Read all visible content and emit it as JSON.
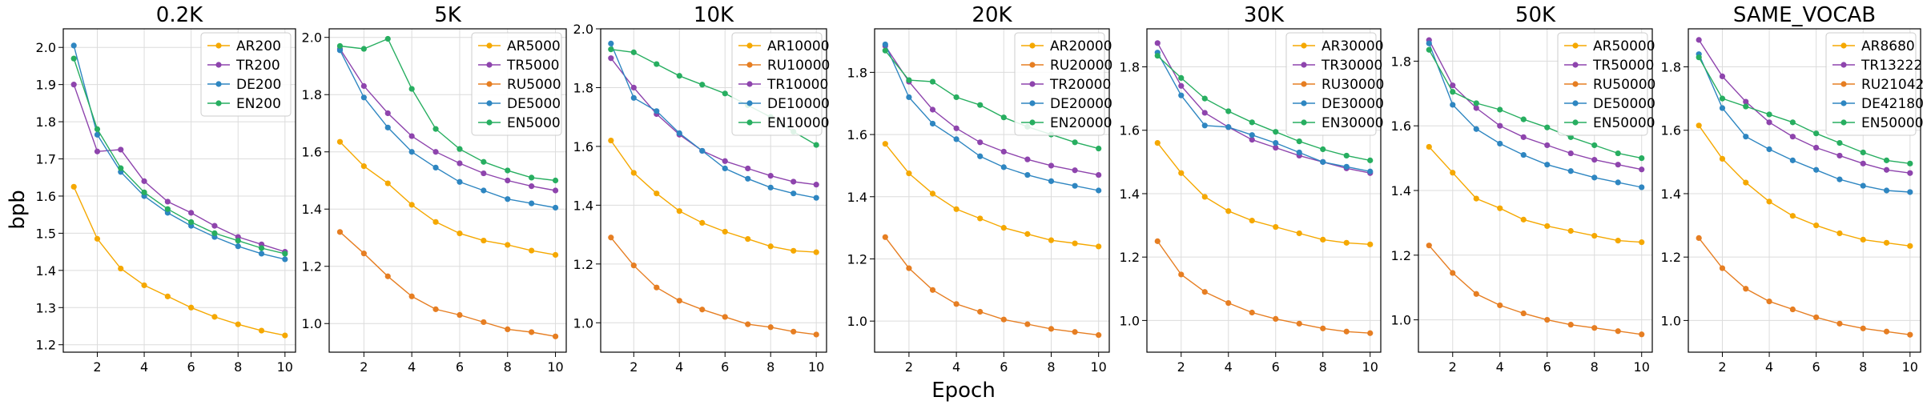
{
  "figure": {
    "xlabel": "Epoch",
    "ylabel": "bpb"
  },
  "colors": {
    "AR": "#f5a800",
    "TR": "#8e44ad",
    "RU": "#e67e22",
    "DE": "#2e86c1",
    "EN": "#27ae60"
  },
  "chart_data": [
    {
      "type": "line",
      "title": "0.2K",
      "x": [
        1,
        2,
        3,
        4,
        5,
        6,
        7,
        8,
        9,
        10
      ],
      "ylim": [
        1.18,
        2.05
      ],
      "yticks": [
        "1.2",
        "1.3",
        "1.4",
        "1.5",
        "1.6",
        "1.7",
        "1.8",
        "1.9",
        "2.0"
      ],
      "ytick_values": [
        1.2,
        1.3,
        1.4,
        1.5,
        1.6,
        1.7,
        1.8,
        1.9,
        2.0
      ],
      "xticks": [
        "2",
        "4",
        "6",
        "8",
        "10"
      ],
      "grid": true,
      "legend": "top-right",
      "series": [
        {
          "name": "AR200",
          "lang": "AR",
          "values": [
            1.625,
            1.485,
            1.405,
            1.36,
            1.33,
            1.3,
            1.275,
            1.255,
            1.238,
            1.225
          ]
        },
        {
          "name": "TR200",
          "lang": "TR",
          "values": [
            1.9,
            1.72,
            1.725,
            1.64,
            1.585,
            1.555,
            1.52,
            1.49,
            1.47,
            1.45
          ]
        },
        {
          "name": "DE200",
          "lang": "DE",
          "values": [
            2.005,
            1.765,
            1.665,
            1.6,
            1.555,
            1.52,
            1.49,
            1.465,
            1.445,
            1.43
          ]
        },
        {
          "name": "EN200",
          "lang": "EN",
          "values": [
            1.97,
            1.78,
            1.675,
            1.61,
            1.565,
            1.53,
            1.5,
            1.48,
            1.46,
            1.445
          ]
        }
      ]
    },
    {
      "type": "line",
      "title": "5K",
      "x": [
        1,
        2,
        3,
        4,
        5,
        6,
        7,
        8,
        9,
        10
      ],
      "ylim": [
        0.9,
        2.03
      ],
      "yticks": [
        "1.0",
        "1.2",
        "1.4",
        "1.6",
        "1.8",
        "2.0"
      ],
      "ytick_values": [
        1.0,
        1.2,
        1.4,
        1.6,
        1.8,
        2.0
      ],
      "xticks": [
        "2",
        "4",
        "6",
        "8",
        "10"
      ],
      "grid": true,
      "legend": "top-right",
      "series": [
        {
          "name": "AR5000",
          "lang": "AR",
          "values": [
            1.635,
            1.55,
            1.49,
            1.415,
            1.355,
            1.315,
            1.29,
            1.275,
            1.255,
            1.24
          ]
        },
        {
          "name": "TR5000",
          "lang": "TR",
          "values": [
            1.96,
            1.83,
            1.735,
            1.655,
            1.6,
            1.56,
            1.525,
            1.5,
            1.48,
            1.465
          ]
        },
        {
          "name": "RU5000",
          "lang": "RU",
          "values": [
            1.32,
            1.245,
            1.165,
            1.095,
            1.05,
            1.03,
            1.005,
            0.98,
            0.97,
            0.955
          ]
        },
        {
          "name": "DE5000",
          "lang": "DE",
          "values": [
            1.955,
            1.79,
            1.685,
            1.6,
            1.545,
            1.495,
            1.465,
            1.435,
            1.42,
            1.405
          ]
        },
        {
          "name": "EN5000",
          "lang": "EN",
          "values": [
            1.97,
            1.96,
            1.995,
            1.82,
            1.68,
            1.61,
            1.565,
            1.535,
            1.51,
            1.5
          ]
        }
      ]
    },
    {
      "type": "line",
      "title": "10K",
      "x": [
        1,
        2,
        3,
        4,
        5,
        6,
        7,
        8,
        9,
        10
      ],
      "ylim": [
        0.9,
        2.0
      ],
      "yticks": [
        "1.0",
        "1.2",
        "1.4",
        "1.6",
        "1.8",
        "2.0"
      ],
      "ytick_values": [
        1.0,
        1.2,
        1.4,
        1.6,
        1.8,
        2.0
      ],
      "xticks": [
        "2",
        "4",
        "6",
        "8",
        "10"
      ],
      "grid": true,
      "legend": "top-right",
      "series": [
        {
          "name": "AR10000",
          "lang": "AR",
          "values": [
            1.62,
            1.51,
            1.44,
            1.38,
            1.34,
            1.31,
            1.285,
            1.26,
            1.245,
            1.24
          ]
        },
        {
          "name": "RU10000",
          "lang": "RU",
          "values": [
            1.29,
            1.195,
            1.12,
            1.075,
            1.045,
            1.02,
            0.995,
            0.985,
            0.97,
            0.96
          ]
        },
        {
          "name": "TR10000",
          "lang": "TR",
          "values": [
            1.9,
            1.8,
            1.71,
            1.64,
            1.585,
            1.55,
            1.525,
            1.5,
            1.48,
            1.47
          ]
        },
        {
          "name": "DE10000",
          "lang": "DE",
          "values": [
            1.95,
            1.765,
            1.72,
            1.645,
            1.585,
            1.525,
            1.49,
            1.46,
            1.44,
            1.425
          ]
        },
        {
          "name": "EN10000",
          "lang": "EN",
          "values": [
            1.93,
            1.92,
            1.88,
            1.84,
            1.81,
            1.78,
            1.74,
            1.7,
            1.65,
            1.605
          ]
        }
      ]
    },
    {
      "type": "line",
      "title": "20K",
      "x": [
        1,
        2,
        3,
        4,
        5,
        6,
        7,
        8,
        9,
        10
      ],
      "ylim": [
        0.9,
        1.94
      ],
      "yticks": [
        "1.0",
        "1.2",
        "1.4",
        "1.6",
        "1.8"
      ],
      "ytick_values": [
        1.0,
        1.2,
        1.4,
        1.6,
        1.8
      ],
      "xticks": [
        "2",
        "4",
        "6",
        "8",
        "10"
      ],
      "grid": true,
      "legend": "top-right",
      "series": [
        {
          "name": "AR20000",
          "lang": "AR",
          "values": [
            1.57,
            1.475,
            1.41,
            1.36,
            1.33,
            1.3,
            1.28,
            1.26,
            1.25,
            1.24
          ]
        },
        {
          "name": "RU20000",
          "lang": "RU",
          "values": [
            1.27,
            1.17,
            1.1,
            1.055,
            1.03,
            1.005,
            0.99,
            0.975,
            0.965,
            0.955
          ]
        },
        {
          "name": "TR20000",
          "lang": "TR",
          "values": [
            1.885,
            1.77,
            1.68,
            1.62,
            1.575,
            1.545,
            1.52,
            1.5,
            1.485,
            1.47
          ]
        },
        {
          "name": "DE20000",
          "lang": "DE",
          "values": [
            1.89,
            1.72,
            1.635,
            1.585,
            1.53,
            1.495,
            1.47,
            1.45,
            1.435,
            1.42
          ]
        },
        {
          "name": "EN20000",
          "lang": "EN",
          "values": [
            1.87,
            1.775,
            1.77,
            1.72,
            1.695,
            1.655,
            1.625,
            1.6,
            1.575,
            1.555
          ]
        }
      ]
    },
    {
      "type": "line",
      "title": "30K",
      "x": [
        1,
        2,
        3,
        4,
        5,
        6,
        7,
        8,
        9,
        10
      ],
      "ylim": [
        0.9,
        1.92
      ],
      "yticks": [
        "1.0",
        "1.2",
        "1.4",
        "1.6",
        "1.8"
      ],
      "ytick_values": [
        1.0,
        1.2,
        1.4,
        1.6,
        1.8
      ],
      "xticks": [
        "2",
        "4",
        "6",
        "8",
        "10"
      ],
      "grid": true,
      "legend": "top-right",
      "series": [
        {
          "name": "AR30000",
          "lang": "AR",
          "values": [
            1.56,
            1.465,
            1.39,
            1.345,
            1.315,
            1.295,
            1.275,
            1.255,
            1.245,
            1.24
          ]
        },
        {
          "name": "TR30000",
          "lang": "TR",
          "values": [
            1.875,
            1.74,
            1.655,
            1.61,
            1.57,
            1.545,
            1.52,
            1.5,
            1.48,
            1.465
          ]
        },
        {
          "name": "RU30000",
          "lang": "RU",
          "values": [
            1.25,
            1.145,
            1.09,
            1.055,
            1.025,
            1.005,
            0.99,
            0.975,
            0.965,
            0.96
          ]
        },
        {
          "name": "DE30000",
          "lang": "DE",
          "values": [
            1.845,
            1.71,
            1.615,
            1.61,
            1.585,
            1.56,
            1.53,
            1.5,
            1.485,
            1.47
          ]
        },
        {
          "name": "EN30000",
          "lang": "EN",
          "values": [
            1.835,
            1.765,
            1.7,
            1.66,
            1.625,
            1.595,
            1.565,
            1.54,
            1.52,
            1.505
          ]
        }
      ]
    },
    {
      "type": "line",
      "title": "50K",
      "x": [
        1,
        2,
        3,
        4,
        5,
        6,
        7,
        8,
        9,
        10
      ],
      "ylim": [
        0.9,
        1.9
      ],
      "yticks": [
        "1.0",
        "1.2",
        "1.4",
        "1.6",
        "1.8"
      ],
      "ytick_values": [
        1.0,
        1.2,
        1.4,
        1.6,
        1.8
      ],
      "xticks": [
        "2",
        "4",
        "6",
        "8",
        "10"
      ],
      "grid": true,
      "legend": "top-right",
      "series": [
        {
          "name": "AR50000",
          "lang": "AR",
          "values": [
            1.535,
            1.455,
            1.375,
            1.345,
            1.31,
            1.29,
            1.275,
            1.26,
            1.245,
            1.24
          ]
        },
        {
          "name": "TR50000",
          "lang": "TR",
          "values": [
            1.865,
            1.725,
            1.655,
            1.6,
            1.565,
            1.54,
            1.515,
            1.495,
            1.48,
            1.465
          ]
        },
        {
          "name": "RU50000",
          "lang": "RU",
          "values": [
            1.23,
            1.145,
            1.08,
            1.045,
            1.02,
            1.0,
            0.985,
            0.975,
            0.965,
            0.955
          ]
        },
        {
          "name": "DE50000",
          "lang": "DE",
          "values": [
            1.855,
            1.665,
            1.59,
            1.545,
            1.51,
            1.48,
            1.46,
            1.44,
            1.425,
            1.41
          ]
        },
        {
          "name": "EN50000",
          "lang": "EN",
          "values": [
            1.835,
            1.705,
            1.67,
            1.65,
            1.62,
            1.595,
            1.565,
            1.54,
            1.515,
            1.5
          ]
        }
      ]
    },
    {
      "type": "line",
      "title": "SAME_VOCAB",
      "x": [
        1,
        2,
        3,
        4,
        5,
        6,
        7,
        8,
        9,
        10
      ],
      "ylim": [
        0.9,
        1.92
      ],
      "yticks": [
        "1.0",
        "1.2",
        "1.4",
        "1.6",
        "1.8"
      ],
      "ytick_values": [
        1.0,
        1.2,
        1.4,
        1.6,
        1.8
      ],
      "xticks": [
        "2",
        "4",
        "6",
        "8",
        "10"
      ],
      "grid": true,
      "legend": "top-right",
      "series": [
        {
          "name": "AR8680",
          "lang": "AR",
          "values": [
            1.615,
            1.51,
            1.435,
            1.375,
            1.33,
            1.3,
            1.275,
            1.255,
            1.245,
            1.235
          ]
        },
        {
          "name": "TR13222",
          "lang": "TR",
          "values": [
            1.885,
            1.77,
            1.69,
            1.625,
            1.58,
            1.545,
            1.52,
            1.495,
            1.475,
            1.465
          ]
        },
        {
          "name": "RU21042",
          "lang": "RU",
          "values": [
            1.26,
            1.165,
            1.1,
            1.06,
            1.035,
            1.01,
            0.99,
            0.975,
            0.965,
            0.955
          ]
        },
        {
          "name": "DE42180",
          "lang": "DE",
          "values": [
            1.84,
            1.67,
            1.58,
            1.54,
            1.505,
            1.475,
            1.445,
            1.425,
            1.41,
            1.405
          ]
        },
        {
          "name": "EN50000",
          "lang": "EN",
          "values": [
            1.83,
            1.7,
            1.675,
            1.65,
            1.625,
            1.59,
            1.56,
            1.53,
            1.505,
            1.495
          ]
        }
      ]
    }
  ]
}
